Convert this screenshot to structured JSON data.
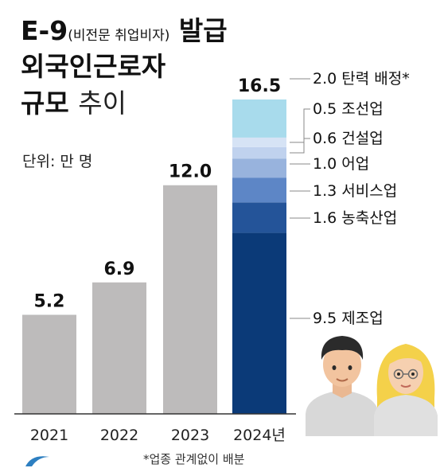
{
  "title": {
    "line1_main": "E-9",
    "line1_paren": "(비전문 취업비자)",
    "line1_end": "발급",
    "line2": "외국인근로자",
    "line3_bold": "규모",
    "line3_light": "추이"
  },
  "unit": "단위: 만 명",
  "footnote": "*업종 관계없이 배분",
  "colors": {
    "past_bar": "#bdbbbb",
    "segments": [
      "#0b3a78",
      "#245499",
      "#5d86c6",
      "#98b3dd",
      "#c0d2ee",
      "#d6e3f5",
      "#a8dbec"
    ],
    "connector": "#888888"
  },
  "chart_data": {
    "type": "bar",
    "categories": [
      "2021",
      "2022",
      "2023",
      "2024년"
    ],
    "values": [
      5.2,
      6.9,
      12.0,
      16.5
    ],
    "value_labels": [
      "5.2",
      "6.9",
      "12.0",
      "16.5"
    ],
    "stacked_breakdown": {
      "category": "2024년",
      "segments": [
        {
          "name": "제조업",
          "value": 9.5,
          "label": "9.5"
        },
        {
          "name": "농축산업",
          "value": 1.6,
          "label": "1.6"
        },
        {
          "name": "서비스업",
          "value": 1.3,
          "label": "1.3"
        },
        {
          "name": "어업",
          "value": 1.0,
          "label": "1.0"
        },
        {
          "name": "건설업",
          "value": 0.6,
          "label": "0.6"
        },
        {
          "name": "조선업",
          "value": 0.5,
          "label": "0.5"
        },
        {
          "name": "탄력 배정*",
          "value": 2.0,
          "label": "2.0"
        }
      ]
    },
    "ylim": [
      0,
      16.5
    ]
  }
}
